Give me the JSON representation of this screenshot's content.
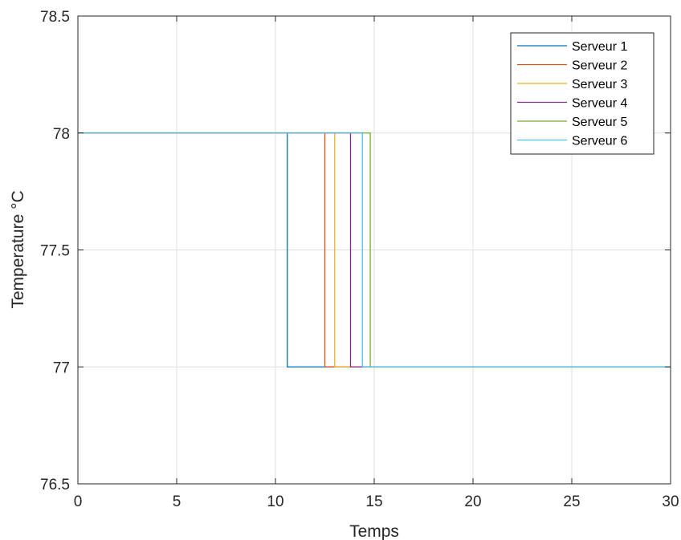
{
  "chart_data": {
    "type": "line",
    "title": "",
    "xlabel": "Temps",
    "ylabel": "Temperature °C",
    "xlim": [
      0,
      30
    ],
    "ylim": [
      76.5,
      78.5
    ],
    "xticks": [
      0,
      5,
      10,
      15,
      20,
      25,
      30
    ],
    "xtick_labels": [
      "0",
      "5",
      "10",
      "15",
      "20",
      "25",
      "30"
    ],
    "yticks": [
      76.5,
      77,
      77.5,
      78,
      78.5
    ],
    "ytick_labels": [
      "76.5",
      "77",
      "77.5",
      "78",
      "78.5"
    ],
    "grid": true,
    "legend_position": "top-right",
    "series": [
      {
        "name": "Serveur 1",
        "color": "#0072bd",
        "x": [
          0,
          10.6,
          10.6,
          30
        ],
        "y": [
          78,
          78,
          77,
          77
        ]
      },
      {
        "name": "Serveur 2",
        "color": "#d95319",
        "x": [
          0,
          12.5,
          12.5,
          30
        ],
        "y": [
          78,
          78,
          77,
          77
        ]
      },
      {
        "name": "Serveur 3",
        "color": "#edb120",
        "x": [
          0,
          13.0,
          13.0,
          30
        ],
        "y": [
          78,
          78,
          77,
          77
        ]
      },
      {
        "name": "Serveur 4",
        "color": "#7e2f8e",
        "x": [
          0,
          13.8,
          13.8,
          30
        ],
        "y": [
          78,
          78,
          77,
          77
        ]
      },
      {
        "name": "Serveur 5",
        "color": "#77ac30",
        "x": [
          0,
          14.8,
          14.8,
          30
        ],
        "y": [
          78,
          78,
          77,
          77
        ]
      },
      {
        "name": "Serveur 6",
        "color": "#4dbeee",
        "x": [
          0,
          14.4,
          14.4,
          30
        ],
        "y": [
          78,
          78,
          77,
          77
        ]
      }
    ]
  }
}
